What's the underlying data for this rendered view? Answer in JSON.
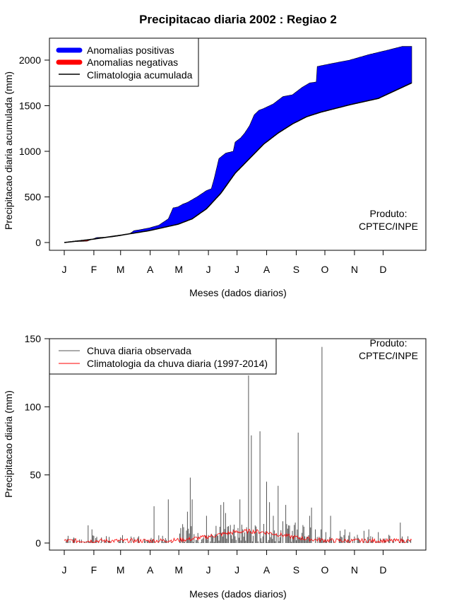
{
  "title": "Precipitacao diaria 2002 : Regiao 2",
  "colors": {
    "positive": "#0000ff",
    "negative": "#ff0000",
    "line": "#000000",
    "obs": "#555555",
    "clim": "#ff0000"
  },
  "chart_data": [
    {
      "type": "area",
      "name": "accumulated",
      "xlabel": "Meses (dados diarios)",
      "ylabel": "Precipitacao diaria acumulada (mm)",
      "xticks": [
        "J",
        "F",
        "M",
        "A",
        "M",
        "J",
        "J",
        "A",
        "S",
        "O",
        "N",
        "D"
      ],
      "ylim": [
        0,
        2200
      ],
      "yticks": [
        0,
        500,
        1000,
        1500,
        2000
      ],
      "legend": [
        "Anomalias positivas",
        "Anomalias negativas",
        "Climatologia acumulada"
      ],
      "annotation": [
        "Produto:",
        "CPTEC/INPE"
      ],
      "climatology_curve": [
        [
          1,
          0
        ],
        [
          30,
          35
        ],
        [
          60,
          80
        ],
        [
          90,
          130
        ],
        [
          120,
          200
        ],
        [
          135,
          260
        ],
        [
          150,
          370
        ],
        [
          165,
          540
        ],
        [
          180,
          760
        ],
        [
          195,
          920
        ],
        [
          210,
          1080
        ],
        [
          225,
          1200
        ],
        [
          240,
          1300
        ],
        [
          255,
          1380
        ],
        [
          270,
          1430
        ],
        [
          300,
          1510
        ],
        [
          330,
          1580
        ],
        [
          365,
          1750
        ]
      ],
      "observed_curve": [
        [
          1,
          0
        ],
        [
          12,
          10
        ],
        [
          25,
          15
        ],
        [
          35,
          55
        ],
        [
          50,
          60
        ],
        [
          60,
          75
        ],
        [
          70,
          100
        ],
        [
          74,
          130
        ],
        [
          80,
          140
        ],
        [
          90,
          160
        ],
        [
          100,
          190
        ],
        [
          110,
          260
        ],
        [
          115,
          380
        ],
        [
          120,
          390
        ],
        [
          125,
          420
        ],
        [
          130,
          440
        ],
        [
          140,
          500
        ],
        [
          150,
          570
        ],
        [
          155,
          590
        ],
        [
          158,
          700
        ],
        [
          163,
          920
        ],
        [
          170,
          980
        ],
        [
          178,
          1000
        ],
        [
          180,
          1100
        ],
        [
          186,
          1150
        ],
        [
          190,
          1200
        ],
        [
          195,
          1280
        ],
        [
          200,
          1400
        ],
        [
          205,
          1450
        ],
        [
          210,
          1470
        ],
        [
          220,
          1520
        ],
        [
          225,
          1560
        ],
        [
          230,
          1600
        ],
        [
          240,
          1620
        ],
        [
          250,
          1700
        ],
        [
          258,
          1750
        ],
        [
          265,
          1760
        ],
        [
          266,
          1930
        ],
        [
          280,
          1960
        ],
        [
          300,
          2000
        ],
        [
          320,
          2060
        ],
        [
          340,
          2110
        ],
        [
          355,
          2150
        ],
        [
          365,
          2150
        ]
      ]
    },
    {
      "type": "bar",
      "name": "daily",
      "xlabel": "Meses (dados diarios)",
      "ylabel": "Precipitacao diaria (mm)",
      "xticks": [
        "J",
        "F",
        "M",
        "A",
        "M",
        "J",
        "J",
        "A",
        "S",
        "O",
        "N",
        "D"
      ],
      "ylim": [
        0,
        150
      ],
      "yticks": [
        0,
        50,
        100,
        150
      ],
      "legend": [
        "Chuva diaria observada",
        "Climatologia da chuva diaria (1997-2014)"
      ],
      "annotation": [
        "Produto:",
        "CPTEC/INPE"
      ],
      "peaks": [
        [
          26,
          13
        ],
        [
          30,
          10
        ],
        [
          78,
          4
        ],
        [
          95,
          27
        ],
        [
          110,
          32
        ],
        [
          130,
          23
        ],
        [
          133,
          48
        ],
        [
          135,
          32
        ],
        [
          150,
          20
        ],
        [
          165,
          28
        ],
        [
          168,
          30
        ],
        [
          170,
          22
        ],
        [
          172,
          12
        ],
        [
          185,
          32
        ],
        [
          188,
          10
        ],
        [
          194,
          123
        ],
        [
          196,
          9
        ],
        [
          197,
          79
        ],
        [
          203,
          8
        ],
        [
          206,
          82
        ],
        [
          210,
          14
        ],
        [
          213,
          45
        ],
        [
          216,
          30
        ],
        [
          220,
          20
        ],
        [
          225,
          42
        ],
        [
          230,
          16
        ],
        [
          233,
          28
        ],
        [
          236,
          13
        ],
        [
          240,
          9
        ],
        [
          243,
          15
        ],
        [
          246,
          81
        ],
        [
          252,
          12
        ],
        [
          258,
          20
        ],
        [
          260,
          26
        ],
        [
          264,
          10
        ],
        [
          270,
          10
        ],
        [
          271,
          144
        ],
        [
          275,
          8
        ],
        [
          280,
          20
        ],
        [
          290,
          9
        ],
        [
          295,
          10
        ],
        [
          300,
          8
        ],
        [
          308,
          6
        ],
        [
          315,
          9
        ],
        [
          320,
          10
        ],
        [
          330,
          8
        ],
        [
          341,
          6
        ],
        [
          353,
          15
        ]
      ]
    }
  ]
}
